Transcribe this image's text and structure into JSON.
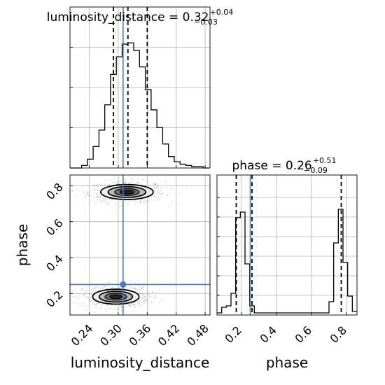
{
  "colors": {
    "truth": "#4a7ab7",
    "hist": "#000000",
    "quantile": "#000000",
    "grid": "#b0b0b0",
    "density": "#000000"
  },
  "chart_data": [
    {
      "type": "histogram",
      "panel": "marginal-luminosity-distance",
      "title": {
        "param": "luminosity_distance",
        "median": "0.32",
        "upper": "+0.04",
        "lower": "−0.03"
      },
      "xlim": [
        0.2,
        0.49
      ],
      "ylim": [
        0,
        1
      ],
      "grid": true,
      "bin_edges": [
        0.2,
        0.212,
        0.224,
        0.236,
        0.248,
        0.26,
        0.272,
        0.284,
        0.296,
        0.308,
        0.32,
        0.332,
        0.344,
        0.356,
        0.368,
        0.38,
        0.392,
        0.404,
        0.416,
        0.428,
        0.44,
        0.452,
        0.464,
        0.476,
        0.488
      ],
      "counts": [
        0.0,
        0.0,
        0.02,
        0.07,
        0.17,
        0.3,
        0.5,
        0.74,
        0.88,
        0.98,
        0.99,
        0.93,
        0.8,
        0.62,
        0.46,
        0.32,
        0.19,
        0.09,
        0.05,
        0.03,
        0.02,
        0.01,
        0.01,
        0.0
      ],
      "quantiles": [
        0.29,
        0.32,
        0.36
      ],
      "truth": 0.31
    },
    {
      "type": "histogram",
      "panel": "marginal-phase",
      "title": {
        "param": "phase",
        "median": "0.26",
        "upper": "+0.51",
        "lower": "−0.09"
      },
      "xlim": [
        0.06,
        0.86
      ],
      "ylim": [
        0,
        1
      ],
      "grid": true,
      "bin_edges": [
        0.06,
        0.0867,
        0.1133,
        0.14,
        0.1667,
        0.1933,
        0.22,
        0.2467,
        0.2733,
        0.3,
        0.3267,
        0.3533,
        0.38,
        0.4067,
        0.4333,
        0.46,
        0.4867,
        0.5133,
        0.54,
        0.5667,
        0.5933,
        0.62,
        0.6467,
        0.6733,
        0.7,
        0.7267,
        0.7533,
        0.78,
        0.8067,
        0.8333,
        0.86
      ],
      "counts": [
        0.0,
        0.04,
        0.05,
        0.14,
        0.68,
        0.72,
        0.35,
        0.05,
        0.0,
        0.0,
        0.0,
        0.0,
        0.0,
        0.0,
        0.0,
        0.0,
        0.0,
        0.0,
        0.0,
        0.0,
        0.0,
        0.0,
        0.0,
        0.0,
        0.08,
        0.5,
        0.74,
        0.36,
        0.12,
        0.01
      ],
      "quantiles": [
        0.17,
        0.26,
        0.77
      ],
      "truth": 0.25
    },
    {
      "type": "2d-density",
      "panel": "joint-luminosity-distance-phase",
      "xlabel": "luminosity_distance",
      "ylabel": "phase",
      "xlim": [
        0.2,
        0.49
      ],
      "ylim": [
        0.08,
        0.86
      ],
      "xticks": [
        "0.24",
        "0.30",
        "0.36",
        "0.42",
        "0.48"
      ],
      "xtick_values": [
        0.24,
        0.3,
        0.36,
        0.42,
        0.48
      ],
      "yticks": [
        "0.2",
        "0.4",
        "0.6",
        "0.8"
      ],
      "ytick_values": [
        0.2,
        0.4,
        0.6,
        0.8
      ],
      "modes": [
        {
          "x": 0.318,
          "y": 0.765,
          "sx": 0.034,
          "sy": 0.026
        },
        {
          "x": 0.295,
          "y": 0.182,
          "sx": 0.03,
          "sy": 0.026
        }
      ],
      "contour_levels": [
        1.6,
        1.15,
        0.75,
        0.42
      ],
      "truth": {
        "x": 0.31,
        "y": 0.25
      }
    },
    {
      "type": "axis",
      "panel": "phase-axis",
      "xlabel": "phase",
      "xticks": [
        "0.2",
        "0.4",
        "0.6",
        "0.8"
      ],
      "xtick_values": [
        0.2,
        0.4,
        0.6,
        0.8
      ]
    }
  ]
}
